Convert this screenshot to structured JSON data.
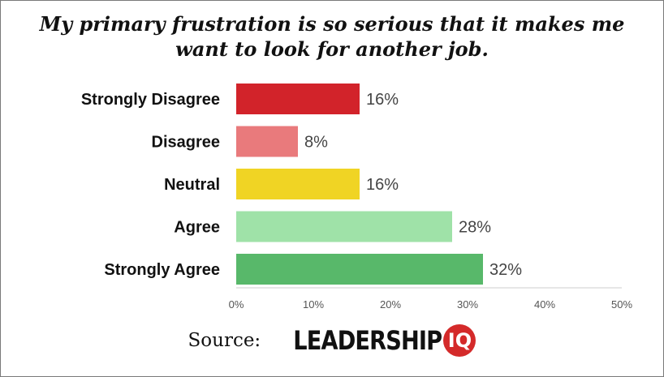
{
  "chart_data": {
    "type": "bar",
    "orientation": "horizontal",
    "title_lines": [
      "My primary frustration is so serious that it makes me",
      "want to look for another job."
    ],
    "categories": [
      "Strongly Disagree",
      "Disagree",
      "Neutral",
      "Agree",
      "Strongly Agree"
    ],
    "values": [
      16,
      8,
      16,
      28,
      32
    ],
    "value_labels": [
      "16%",
      "8%",
      "16%",
      "28%",
      "32%"
    ],
    "colors": [
      "#d2232a",
      "#e97a7c",
      "#f0d424",
      "#9fe2a8",
      "#58b86a"
    ],
    "xlim": [
      0,
      50
    ],
    "xticks": [
      0,
      10,
      20,
      30,
      40,
      50
    ],
    "xtick_labels": [
      "0%",
      "10%",
      "20%",
      "30%",
      "40%",
      "50%"
    ],
    "grid": false,
    "legend": "none"
  },
  "source": {
    "prefix": "Source:",
    "logo_text": "LEADERSHIP",
    "logo_badge": "IQ"
  }
}
